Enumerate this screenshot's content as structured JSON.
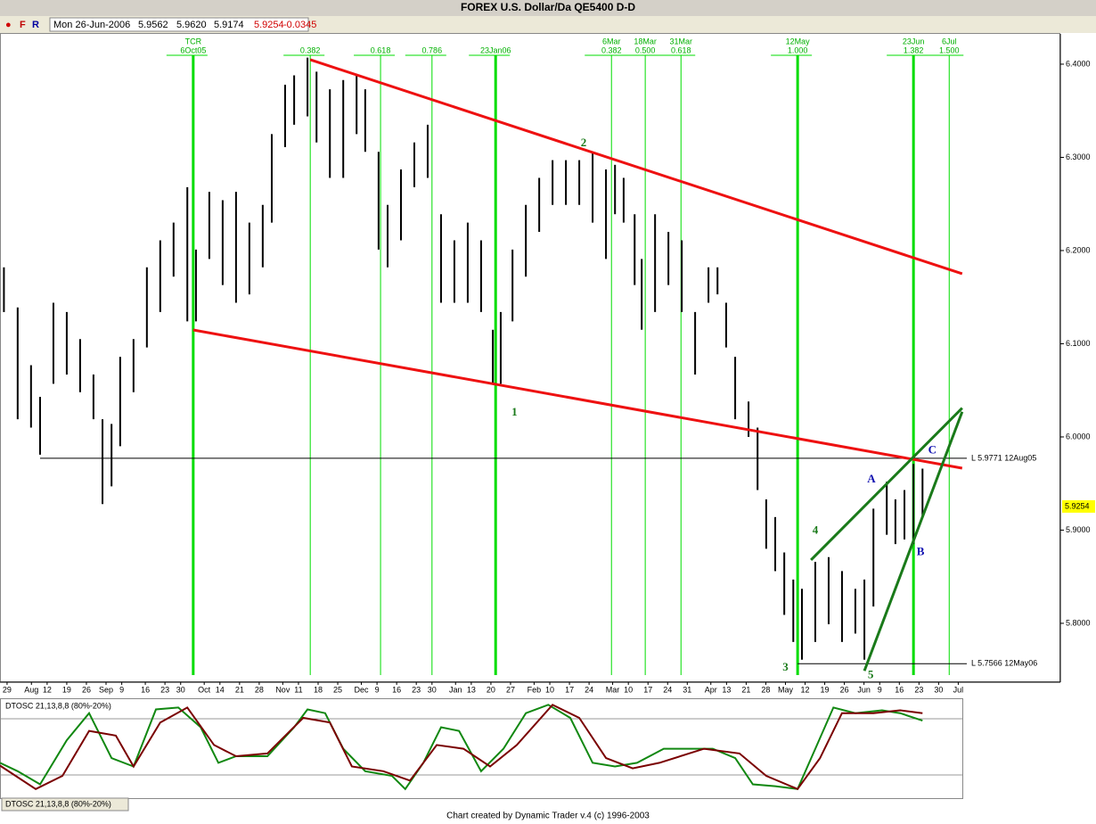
{
  "chart_data": {
    "type": "ohlc",
    "title": "FOREX U.S. Dollar/Da QE5400 D-D",
    "quote": {
      "flags": [
        "F",
        "R"
      ],
      "date": "Mon 26-Jun-2006",
      "open": "5.9562",
      "high": "5.9620",
      "low": "5.9174",
      "close": "5.9254",
      "change": "-0.0345"
    },
    "footer": "Chart created by Dynamic Trader v.4  (c) 1996-2003",
    "color": "#000000",
    "xlim": [
      0,
      270
    ],
    "ylim": [
      5.7368,
      6.4325
    ],
    "yticks": [
      {
        "value": 6.4,
        "label": "6.4000"
      },
      {
        "value": 6.3,
        "label": "6.3000"
      },
      {
        "value": 6.2,
        "label": "6.2000"
      },
      {
        "value": 6.1,
        "label": "6.1000"
      },
      {
        "value": 6.0,
        "label": "6.0000"
      },
      {
        "value": 5.9,
        "label": "5.9000"
      },
      {
        "value": 5.8,
        "label": "5.8000"
      }
    ],
    "xticks": [
      {
        "value": 1.8,
        "label": "29"
      },
      {
        "value": 8,
        "label": "Aug"
      },
      {
        "value": 12,
        "label": "12"
      },
      {
        "value": 17,
        "label": "19"
      },
      {
        "value": 22,
        "label": "26"
      },
      {
        "value": 27,
        "label": "Sep"
      },
      {
        "value": 31,
        "label": "9"
      },
      {
        "value": 37,
        "label": "16"
      },
      {
        "value": 42,
        "label": "23"
      },
      {
        "value": 46,
        "label": "30"
      },
      {
        "value": 52,
        "label": "Oct"
      },
      {
        "value": 56,
        "label": "14"
      },
      {
        "value": 61,
        "label": "21"
      },
      {
        "value": 66,
        "label": "28"
      },
      {
        "value": 72,
        "label": "Nov"
      },
      {
        "value": 76,
        "label": "11"
      },
      {
        "value": 81,
        "label": "18"
      },
      {
        "value": 86,
        "label": "25"
      },
      {
        "value": 92,
        "label": "Dec"
      },
      {
        "value": 96,
        "label": "9"
      },
      {
        "value": 101,
        "label": "16"
      },
      {
        "value": 106,
        "label": "23"
      },
      {
        "value": 110,
        "label": "30"
      },
      {
        "value": 116,
        "label": "Jan"
      },
      {
        "value": 120,
        "label": "13"
      },
      {
        "value": 125,
        "label": "20"
      },
      {
        "value": 130,
        "label": "27"
      },
      {
        "value": 136,
        "label": "Feb"
      },
      {
        "value": 140,
        "label": "10"
      },
      {
        "value": 145,
        "label": "17"
      },
      {
        "value": 150,
        "label": "24"
      },
      {
        "value": 156,
        "label": "Mar"
      },
      {
        "value": 160,
        "label": "10"
      },
      {
        "value": 165,
        "label": "17"
      },
      {
        "value": 170,
        "label": "24"
      },
      {
        "value": 175,
        "label": "31"
      },
      {
        "value": 181,
        "label": "Apr"
      },
      {
        "value": 185,
        "label": "13"
      },
      {
        "value": 190,
        "label": "21"
      },
      {
        "value": 195,
        "label": "28"
      },
      {
        "value": 200,
        "label": "May"
      },
      {
        "value": 205,
        "label": "12"
      },
      {
        "value": 210,
        "label": "19"
      },
      {
        "value": 215,
        "label": "26"
      },
      {
        "value": 220,
        "label": "Jun"
      },
      {
        "value": 224,
        "label": "9"
      },
      {
        "value": 229,
        "label": "16"
      },
      {
        "value": 234,
        "label": "23"
      },
      {
        "value": 239,
        "label": "30"
      },
      {
        "value": 244,
        "label": "Jul"
      }
    ],
    "x": [
      1,
      4.5,
      7.9,
      10.2,
      13.6,
      17,
      20.4,
      23.8,
      26.1,
      28.4,
      30.6,
      34,
      37.4,
      40.8,
      44.2,
      47.7,
      49.9,
      53.3,
      56.7,
      60.1,
      63.5,
      66.9,
      69.2,
      72.6,
      74.9,
      78.3,
      80.6,
      84,
      87.4,
      90.8,
      93,
      96.4,
      98.7,
      102.1,
      105.5,
      108.9,
      112.3,
      115.7,
      119.1,
      122.5,
      125.5,
      127.5,
      130.5,
      133.9,
      137.3,
      140.7,
      144.1,
      147.5,
      150.9,
      154.3,
      156.6,
      158.8,
      161.6,
      163.4,
      166.8,
      170.2,
      173.6,
      177,
      180.4,
      182.7,
      184.9,
      187.2,
      190.6,
      192.9,
      195.1,
      197.4,
      199.7,
      202,
      204.2,
      207.6,
      211,
      214.4,
      217.8,
      220.1,
      222.4,
      225.8,
      228,
      230.3,
      232.6,
      234.9
    ],
    "high": [
      6.182,
      6.139,
      6.077,
      6.043,
      6.144,
      6.134,
      6.105,
      6.067,
      6.019,
      6.014,
      6.086,
      6.105,
      6.182,
      6.211,
      6.23,
      6.268,
      6.201,
      6.263,
      6.254,
      6.263,
      6.23,
      6.249,
      6.325,
      6.378,
      6.388,
      6.407,
      6.392,
      6.373,
      6.383,
      6.388,
      6.373,
      6.306,
      6.249,
      6.287,
      6.316,
      6.335,
      6.239,
      6.211,
      6.23,
      6.211,
      6.115,
      6.134,
      6.201,
      6.249,
      6.278,
      6.297,
      6.297,
      6.297,
      6.306,
      6.287,
      6.292,
      6.278,
      6.239,
      6.191,
      6.239,
      6.22,
      6.211,
      6.134,
      6.182,
      6.182,
      6.144,
      6.086,
      6.038,
      6.01,
      5.933,
      5.914,
      5.876,
      5.847,
      5.837,
      5.866,
      5.871,
      5.856,
      5.837,
      5.847,
      5.923,
      5.952,
      5.933,
      5.943,
      5.971,
      5.966
    ],
    "low": [
      6.134,
      6.019,
      6.01,
      5.981,
      6.057,
      6.067,
      6.048,
      6.019,
      5.928,
      5.947,
      5.99,
      6.048,
      6.096,
      6.134,
      6.172,
      6.124,
      6.124,
      6.191,
      6.163,
      6.144,
      6.153,
      6.182,
      6.23,
      6.311,
      6.335,
      6.344,
      6.316,
      6.278,
      6.278,
      6.325,
      6.306,
      6.201,
      6.182,
      6.211,
      6.268,
      6.278,
      6.144,
      6.144,
      6.144,
      6.134,
      6.057,
      6.057,
      6.124,
      6.172,
      6.22,
      6.249,
      6.249,
      6.249,
      6.23,
      6.191,
      6.239,
      6.23,
      6.163,
      6.115,
      6.134,
      6.163,
      6.134,
      6.067,
      6.144,
      6.153,
      6.096,
      6.019,
      6.0,
      5.943,
      5.88,
      5.856,
      5.809,
      5.78,
      5.761,
      5.78,
      5.799,
      5.78,
      5.789,
      5.761,
      5.818,
      5.895,
      5.885,
      5.89,
      5.885,
      5.914
    ],
    "cycle_lines": [
      {
        "x": 49.2,
        "labels": [
          "TCR",
          "6Oct05"
        ],
        "thick": true
      },
      {
        "x": 79,
        "labels": [
          "0.382"
        ],
        "thick": false
      },
      {
        "x": 96.9,
        "labels": [
          "0.618"
        ],
        "thick": false
      },
      {
        "x": 110,
        "labels": [
          "0.786"
        ],
        "thick": false
      },
      {
        "x": 126.2,
        "labels": [
          "23Jan06"
        ],
        "thick": true
      },
      {
        "x": 155.7,
        "labels": [
          "6Mar",
          "0.382"
        ],
        "thick": false
      },
      {
        "x": 164.3,
        "labels": [
          "18Mar",
          "0.500"
        ],
        "thick": false
      },
      {
        "x": 173.4,
        "labels": [
          "31Mar",
          "0.618"
        ],
        "thick": false
      },
      {
        "x": 203.1,
        "labels": [
          "12May",
          "1.000"
        ],
        "thick": true
      },
      {
        "x": 232.6,
        "labels": [
          "23Jun",
          "1.382"
        ],
        "thick": true
      },
      {
        "x": 241.7,
        "labels": [
          "6Jul",
          "1.500"
        ],
        "thick": false
      }
    ],
    "cycle_color": "#00dd00",
    "trend_lines": [
      {
        "color": "#ee1111",
        "points": [
          [
            79,
            6.4048
          ],
          [
            245,
            6.1751
          ]
        ]
      },
      {
        "color": "#ee1111",
        "points": [
          [
            49.2,
            6.1148
          ],
          [
            245,
            5.9665
          ]
        ]
      },
      {
        "color": "#1a7a1a",
        "points": [
          [
            206.5,
            5.868
          ],
          [
            245,
            6.031
          ]
        ]
      },
      {
        "color": "#1a7a1a",
        "points": [
          [
            220.1,
            5.749
          ],
          [
            245,
            6.027
          ]
        ]
      }
    ],
    "hlines": [
      {
        "value": 5.9771,
        "x": 10.2,
        "label": "L 5.9771 12Aug05"
      },
      {
        "value": 5.7566,
        "x": 203.1,
        "label": "L 5.7566 12May06"
      }
    ],
    "wave_labels": [
      {
        "text": "1",
        "x": 131,
        "price": 6.026,
        "color": "#1a7a1a"
      },
      {
        "text": "2",
        "x": 148.6,
        "price": 6.315,
        "color": "#1a7a1a"
      },
      {
        "text": "3",
        "x": 200,
        "price": 5.752,
        "color": "#1a7a1a"
      },
      {
        "text": "4",
        "x": 207.6,
        "price": 5.899,
        "color": "#1a7a1a"
      },
      {
        "text": "5",
        "x": 221.7,
        "price": 5.744,
        "color": "#1a7a1a"
      },
      {
        "text": "A",
        "x": 221.9,
        "price": 5.954,
        "color": "#1010b0"
      },
      {
        "text": "B",
        "x": 234.4,
        "price": 5.876,
        "color": "#1010b0"
      },
      {
        "text": "C",
        "x": 237.4,
        "price": 5.985,
        "color": "#1010b0"
      }
    ],
    "oscillator": {
      "title": "DTOSC 21,13,8,8 (80%-20%)",
      "ylim": [
        0,
        100
      ],
      "levels": [
        20,
        80
      ],
      "series": [
        {
          "color": "#118811",
          "x": [
            0,
            4.5,
            10.2,
            17,
            22.7,
            28.4,
            34,
            39.7,
            45.4,
            51.1,
            55.6,
            60.1,
            68.1,
            74.9,
            78.3,
            82.8,
            87.4,
            93,
            99.8,
            103.2,
            107.8,
            112.3,
            116.9,
            122.5,
            128.2,
            133.9,
            139.6,
            145.2,
            150.9,
            156.6,
            162.2,
            169,
            174.7,
            181.5,
            187.2,
            191.7,
            197.4,
            203.1,
            207.6,
            212.2,
            217.8,
            224.6,
            229.2,
            234.9
          ],
          "values": [
            33,
            24,
            10,
            57,
            86,
            38,
            29,
            90,
            92,
            71,
            33,
            40,
            40,
            71,
            90,
            86,
            48,
            24,
            19,
            5,
            33,
            71,
            67,
            24,
            48,
            86,
            95,
            81,
            33,
            29,
            33,
            48,
            48,
            48,
            38,
            10,
            8,
            5,
            48,
            92,
            86,
            89,
            86,
            78
          ]
        },
        {
          "color": "#7a0000",
          "x": [
            0,
            9.1,
            15.9,
            22.7,
            29.5,
            34,
            40.8,
            47.7,
            54.5,
            60.1,
            68.1,
            77.2,
            84,
            89.6,
            97.6,
            104.4,
            111.2,
            118,
            124.8,
            131.6,
            140.7,
            147.5,
            154.3,
            161.1,
            167.9,
            179.3,
            188.3,
            195.1,
            203.1,
            208.8,
            214.4,
            222.4,
            229.2,
            234.9
          ],
          "values": [
            30,
            5,
            19,
            67,
            62,
            29,
            76,
            92,
            52,
            40,
            43,
            81,
            76,
            29,
            24,
            14,
            52,
            48,
            29,
            52,
            95,
            81,
            38,
            27,
            33,
            48,
            43,
            19,
            5,
            38,
            86,
            86,
            89,
            86
          ]
        }
      ]
    }
  }
}
